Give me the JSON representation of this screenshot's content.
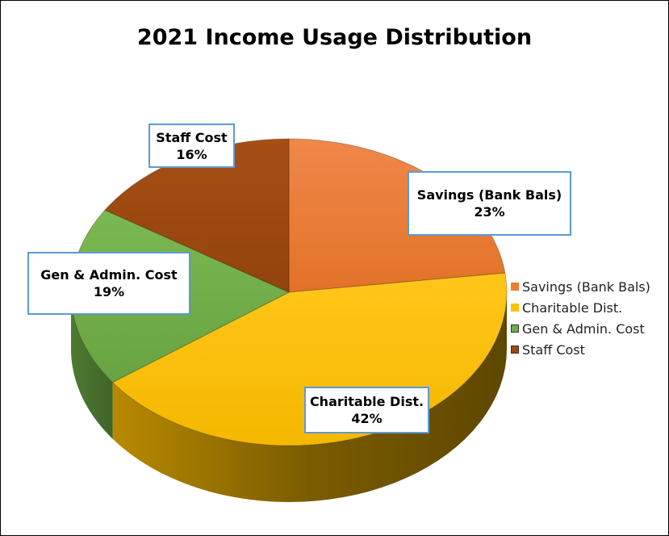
{
  "chart_data": {
    "type": "pie",
    "title": "2021 Income Usage Distribution",
    "categories": [
      "Savings (Bank Bals)",
      "Charitable Dist.",
      "Gen & Admin. Cost",
      "Staff Cost"
    ],
    "values": [
      23,
      42,
      19,
      16
    ],
    "value_labels": [
      "23%",
      "42%",
      "19%",
      "16%"
    ],
    "colors": [
      "#ed7d31",
      "#ffc000",
      "#70ad47",
      "#9e480e"
    ],
    "start_angle_deg": 0,
    "direction": "clockwise",
    "style": "3d",
    "legend_position": "right"
  }
}
